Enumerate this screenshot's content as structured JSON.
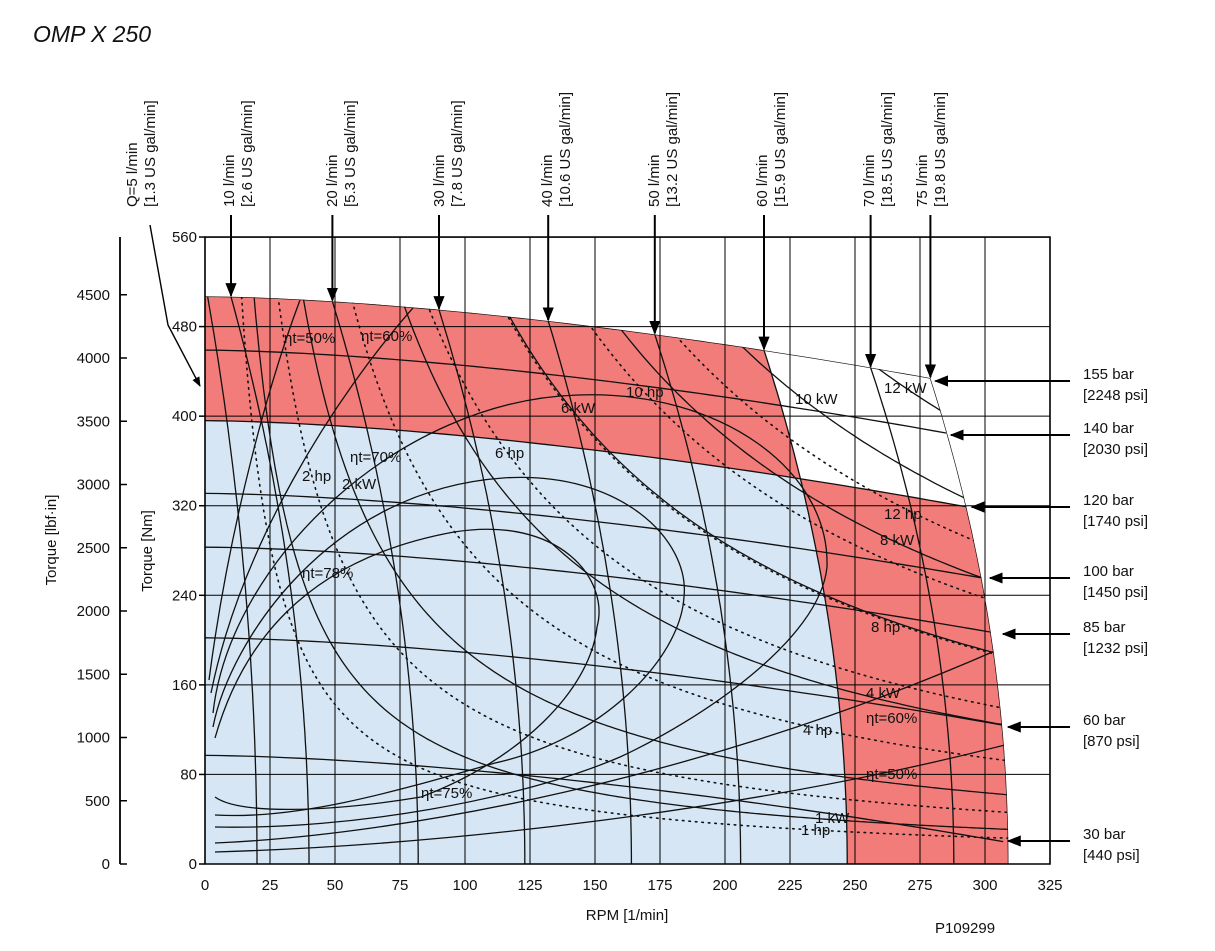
{
  "chart_data": {
    "type": "line",
    "title": "OMP X 250",
    "xlabel": "RPM [1/min]",
    "ylabel": "Torque [Nm]",
    "ylabel_secondary": "Torque [lbf·in]",
    "xlim": [
      0,
      325
    ],
    "ylim": [
      0,
      560
    ],
    "xticks": [
      "0",
      "25",
      "50",
      "75",
      "100",
      "125",
      "150",
      "175",
      "200",
      "225",
      "250",
      "275",
      "300",
      "325"
    ],
    "yticks": [
      "0",
      "80",
      "160",
      "240",
      "320",
      "400",
      "480",
      "560"
    ],
    "yticks_secondary": [
      "0",
      "500",
      "1000",
      "1500",
      "2000",
      "2500",
      "3000",
      "3500",
      "4000",
      "4500"
    ],
    "grid": true,
    "colors": {
      "intermittent": "#f27c79",
      "continuous": "#d6e6f4"
    },
    "pressure_lines": [
      {
        "label": "155 bar",
        "sub": "[2248 psi]",
        "torque_at_0_rpm": 507,
        "torque_at_end": 434,
        "rpm_end": 279
      },
      {
        "label": "140 bar",
        "sub": "[2030 psi]",
        "torque_at_0_rpm": 459,
        "torque_at_end": 385,
        "rpm_end": 285
      },
      {
        "label": "120 bar",
        "sub": "[1740 psi]",
        "torque_at_0_rpm": 396,
        "torque_at_end": 319,
        "rpm_end": 293
      },
      {
        "label": "100 bar",
        "sub": "[1450 psi]",
        "torque_at_0_rpm": 331,
        "torque_at_end": 255,
        "rpm_end": 300
      },
      {
        "label": "85 bar",
        "sub": "[1232 psi]",
        "torque_at_0_rpm": 283,
        "torque_at_end": 206,
        "rpm_end": 305
      },
      {
        "label": "60 bar",
        "sub": "[870 psi]",
        "torque_at_0_rpm": 202,
        "torque_at_end": 124,
        "rpm_end": 307
      },
      {
        "label": "30 bar",
        "sub": "[440 psi]",
        "torque_at_0_rpm": 97,
        "torque_at_end": 20,
        "rpm_end": 307
      }
    ],
    "flow_lines": [
      {
        "label": "Q=5 l/min",
        "sub": "[1.3 US gal/min]",
        "rpm_top": 1,
        "rpm_zero_torque": 20
      },
      {
        "label": "10 l/min",
        "sub": "[2.6 US gal/min]",
        "rpm_top": 10,
        "rpm_zero_torque": 40
      },
      {
        "label": "20 l/min",
        "sub": "[5.3 US gal/min]",
        "rpm_top": 49,
        "rpm_zero_torque": 82
      },
      {
        "label": "30 l/min",
        "sub": "[7.8 US gal/min]",
        "rpm_top": 90,
        "rpm_zero_torque": 123
      },
      {
        "label": "40 l/min",
        "sub": "[10.6 US gal/min]",
        "rpm_top": 132,
        "rpm_zero_torque": 164
      },
      {
        "label": "50 l/min",
        "sub": "[13.2 US gal/min]",
        "rpm_top": 173,
        "rpm_zero_torque": 206
      },
      {
        "label": "60 l/min",
        "sub": "[15.9 US gal/min]",
        "rpm_top": 215,
        "rpm_zero_torque": 247
      },
      {
        "label": "70 l/min",
        "sub": "[18.5 US gal/min]",
        "rpm_top": 256,
        "rpm_zero_torque": 288
      },
      {
        "label": "75 l/min",
        "sub": "[19.8 US gal/min]",
        "rpm_top": 279,
        "rpm_zero_torque": 309
      }
    ],
    "power_kw": [
      {
        "value": 1,
        "label": "1 kW"
      },
      {
        "value": 2,
        "label": "2 kW"
      },
      {
        "value": 4,
        "label": "4 kW"
      },
      {
        "value": 6,
        "label": "6 kW"
      },
      {
        "value": 8,
        "label": "8 kW"
      },
      {
        "value": 10,
        "label": "10 kW"
      },
      {
        "value": 12,
        "label": "12 kW"
      }
    ],
    "power_hp": [
      {
        "value": 1,
        "label": "1 hp"
      },
      {
        "value": 2,
        "label": "2 hp"
      },
      {
        "value": 4,
        "label": "4 hp"
      },
      {
        "value": 6,
        "label": "6 hp"
      },
      {
        "value": 8,
        "label": "8 hp"
      },
      {
        "value": 10,
        "label": "10 hp"
      },
      {
        "value": 12,
        "label": "12 hp"
      }
    ],
    "efficiency_labels": [
      "ηt=50%",
      "ηt=60%",
      "ηt=70%",
      "ηt=78%",
      "ηt=75%",
      "ηt=60%",
      "ηt=50%"
    ],
    "drawing_code": "P109299"
  }
}
